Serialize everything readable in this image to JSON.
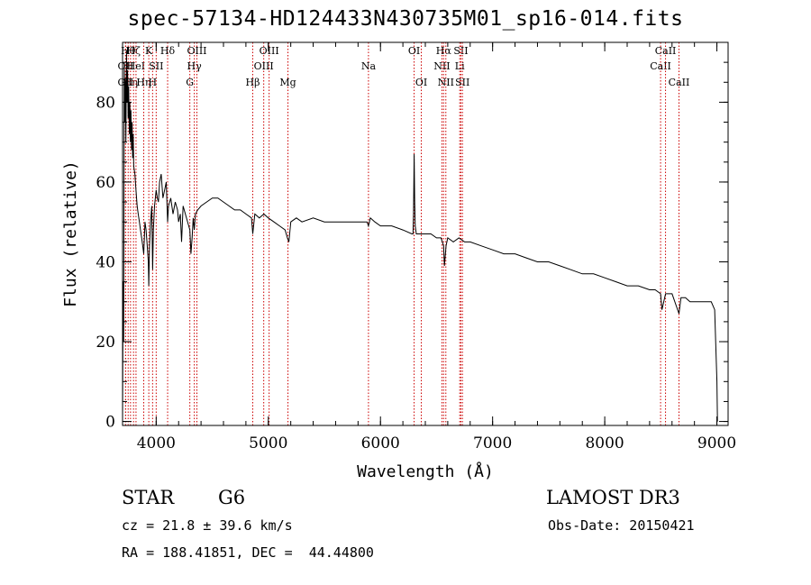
{
  "title": "spec-57134-HD124433N430735M01_sp16-014.fits",
  "footer": {
    "object_class": "STAR",
    "subclass": "G6",
    "survey": "LAMOST DR3",
    "cz": "cz = 21.8 ± 39.6 km/s",
    "obs_date": "Obs-Date: 20150421",
    "coords": "RA = 188.41851, DEC =  44.44800"
  },
  "chart_data": {
    "type": "line",
    "title": "spec-57134-HD124433N430735M01_sp16-014.fits",
    "xlabel": "Wavelength (Å)",
    "ylabel": "Flux (relative)",
    "xlim": [
      3700,
      9100
    ],
    "ylim": [
      -1,
      95
    ],
    "xticks": [
      4000,
      5000,
      6000,
      7000,
      8000,
      9000
    ],
    "yticks": [
      0,
      20,
      40,
      60,
      80
    ],
    "grid": false,
    "line_color": "#000000",
    "marker_color": "#cc0000",
    "series": [
      {
        "x": [
          3700,
          3705,
          3710,
          3715,
          3720,
          3725,
          3730,
          3735,
          3740,
          3745,
          3750,
          3755,
          3760,
          3765,
          3770,
          3775,
          3780,
          3785,
          3790,
          3795,
          3800,
          3810,
          3820,
          3830,
          3840,
          3850,
          3860,
          3870,
          3880,
          3889,
          3900,
          3910,
          3920,
          3930,
          3934,
          3940,
          3950,
          3960,
          3968,
          3975,
          3985,
          4000,
          4010,
          4020,
          4030,
          4045,
          4060,
          4075,
          4090,
          4102,
          4110,
          4130,
          4150,
          4170,
          4190,
          4200,
          4215,
          4226,
          4240,
          4260,
          4280,
          4300,
          4310,
          4320,
          4330,
          4340,
          4350,
          4370,
          4400,
          4450,
          4500,
          4550,
          4600,
          4650,
          4700,
          4750,
          4800,
          4850,
          4861,
          4880,
          4920,
          4960,
          5000,
          5050,
          5100,
          5150,
          5170,
          5183,
          5200,
          5250,
          5300,
          5400,
          5500,
          5600,
          5700,
          5800,
          5880,
          5893,
          5910,
          5950,
          6000,
          6100,
          6200,
          6280,
          6290,
          6295,
          6300,
          6305,
          6310,
          6320,
          6340,
          6400,
          6450,
          6500,
          6540,
          6563,
          6570,
          6585,
          6600,
          6650,
          6700,
          6750,
          6800,
          6900,
          7000,
          7100,
          7200,
          7300,
          7400,
          7500,
          7600,
          7700,
          7800,
          7900,
          8000,
          8100,
          8200,
          8300,
          8400,
          8450,
          8498,
          8510,
          8542,
          8560,
          8600,
          8662,
          8680,
          8720,
          8760,
          8800,
          8850,
          8900,
          8950,
          8980,
          9000,
          9005
        ],
        "y": [
          0,
          35,
          20,
          90,
          75,
          85,
          70,
          93,
          80,
          88,
          76,
          84,
          72,
          80,
          70,
          78,
          68,
          75,
          66,
          72,
          64,
          62,
          58,
          54,
          52,
          50,
          48,
          46,
          44,
          42,
          50,
          48,
          44,
          40,
          34,
          44,
          50,
          54,
          38,
          48,
          54,
          58,
          56,
          55,
          60,
          62,
          56,
          58,
          60,
          50,
          54,
          56,
          52,
          55,
          53,
          50,
          52,
          45,
          54,
          52,
          50,
          48,
          42,
          46,
          51,
          48,
          52,
          53,
          54,
          55,
          56,
          56,
          55,
          54,
          53,
          53,
          52,
          51,
          47,
          52,
          51,
          52,
          51,
          50,
          49,
          48,
          46,
          45,
          50,
          51,
          50,
          51,
          50,
          50,
          50,
          50,
          50,
          49,
          51,
          50,
          49,
          49,
          48,
          47,
          47,
          52,
          67,
          55,
          49,
          47,
          47,
          47,
          47,
          46,
          46,
          44,
          39,
          44,
          46,
          45,
          46,
          45,
          45,
          44,
          43,
          42,
          42,
          41,
          40,
          40,
          39,
          38,
          37,
          37,
          36,
          35,
          34,
          34,
          33,
          33,
          32,
          28,
          32,
          32,
          32,
          27,
          31,
          31,
          30,
          30,
          30,
          30,
          30,
          28,
          10,
          0
        ]
      }
    ],
    "line_markers": [
      {
        "wavelength": 3727,
        "label": "OII",
        "row": 1
      },
      {
        "wavelength": 3727,
        "label": "OII",
        "row": 2
      },
      {
        "wavelength": 3750,
        "label": "Hθ",
        "row": 0
      },
      {
        "wavelength": 3771,
        "label": "Hη",
        "row": 2
      },
      {
        "wavelength": 3798,
        "label": "Hζ",
        "row": 0
      },
      {
        "wavelength": 3820,
        "label": "HeI",
        "row": 1
      },
      {
        "wavelength": 3889,
        "label": "Hη",
        "row": 2
      },
      {
        "wavelength": 3934,
        "label": "K",
        "row": 0
      },
      {
        "wavelength": 3968,
        "label": "H",
        "row": 2
      },
      {
        "wavelength": 4000,
        "label": "SII",
        "row": 1
      },
      {
        "wavelength": 4102,
        "label": "Hδ",
        "row": 0
      },
      {
        "wavelength": 4300,
        "label": "G",
        "row": 2
      },
      {
        "wavelength": 4340,
        "label": "Hγ",
        "row": 1
      },
      {
        "wavelength": 4363,
        "label": "OIII",
        "row": 0
      },
      {
        "wavelength": 4861,
        "label": "Hβ",
        "row": 2
      },
      {
        "wavelength": 4959,
        "label": "OIII",
        "row": 1
      },
      {
        "wavelength": 5007,
        "label": "OIII",
        "row": 0
      },
      {
        "wavelength": 5175,
        "label": "Mg",
        "row": 2
      },
      {
        "wavelength": 5893,
        "label": "Na",
        "row": 1
      },
      {
        "wavelength": 6300,
        "label": "OI",
        "row": 0
      },
      {
        "wavelength": 6364,
        "label": "OI",
        "row": 2
      },
      {
        "wavelength": 6548,
        "label": "NII",
        "row": 1
      },
      {
        "wavelength": 6563,
        "label": "Hα",
        "row": 0
      },
      {
        "wavelength": 6583,
        "label": "NII",
        "row": 2
      },
      {
        "wavelength": 6707,
        "label": "Li",
        "row": 1
      },
      {
        "wavelength": 6717,
        "label": "SII",
        "row": 0
      },
      {
        "wavelength": 6731,
        "label": "SII",
        "row": 2
      },
      {
        "wavelength": 8498,
        "label": "CaII",
        "row": 1
      },
      {
        "wavelength": 8542,
        "label": "CaII",
        "row": 0
      },
      {
        "wavelength": 8662,
        "label": "CaII",
        "row": 2
      }
    ]
  }
}
